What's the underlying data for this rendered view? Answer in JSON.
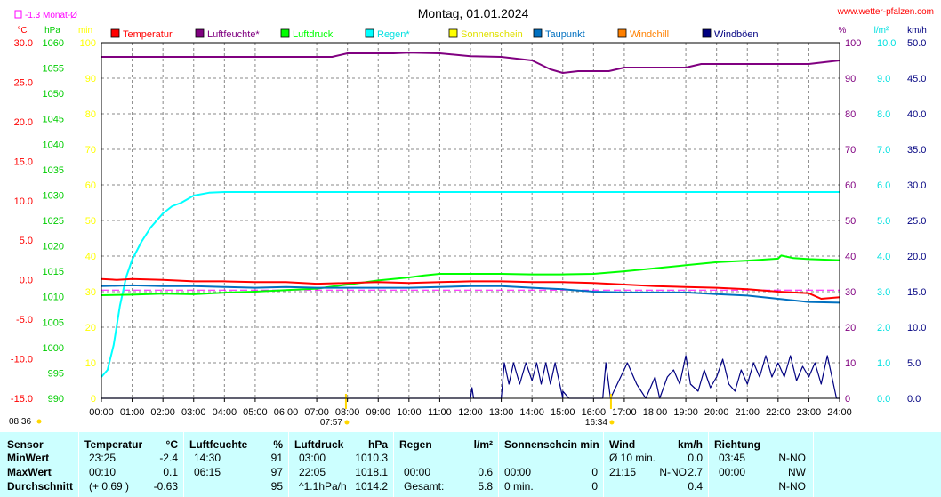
{
  "site": "www.wetter-pfalzen.com",
  "chart_data": {
    "type": "line",
    "title": "Montag, 01.01.2024",
    "x_range": [
      "00:00",
      "24:00"
    ],
    "x_ticks": [
      "00:00",
      "01:00",
      "02:00",
      "03:00",
      "04:00",
      "05:00",
      "06:00",
      "07:00",
      "08:00",
      "09:00",
      "10:00",
      "11:00",
      "12:00",
      "13:00",
      "14:00",
      "15:00",
      "16:00",
      "17:00",
      "18:00",
      "19:00",
      "20:00",
      "21:00",
      "22:00",
      "23:00",
      "24:00"
    ],
    "grid": true,
    "legend_position": "top",
    "month_avg_label": "-1.3 Monat-Ø",
    "month_avg_value": -1.3,
    "sunrise": "07:57",
    "sunset": "16:34",
    "sunrise_hour": 7.95,
    "sunset_hour": 16.567,
    "left_corner_time": "08:36",
    "axes": [
      {
        "id": "temp",
        "unit": "°C",
        "color": "#ff0000",
        "range": [
          -15,
          30
        ],
        "ticks": [
          "30.0",
          "25.0",
          "20.0",
          "15.0",
          "10.0",
          "5.0",
          "0.0",
          "-5.0",
          "-10.0",
          "-15.0"
        ]
      },
      {
        "id": "press",
        "unit": "hPa",
        "color": "#00cc00",
        "range": [
          990,
          1060
        ],
        "ticks": [
          "1060",
          "1055",
          "1050",
          "1045",
          "1040",
          "1035",
          "1030",
          "1025",
          "1020",
          "1015",
          "1010",
          "1005",
          "1000",
          "995",
          "990"
        ]
      },
      {
        "id": "sun",
        "unit": "min",
        "color": "#ffff00",
        "range": [
          0,
          100
        ],
        "ticks": [
          "100",
          "90",
          "80",
          "70",
          "60",
          "50",
          "40",
          "30",
          "20",
          "10",
          "0"
        ]
      },
      {
        "id": "hum",
        "unit": "%",
        "color": "#800080",
        "range": [
          0,
          100
        ],
        "ticks": [
          "100",
          "90",
          "80",
          "70",
          "60",
          "50",
          "40",
          "30",
          "20",
          "10",
          "0"
        ]
      },
      {
        "id": "rain",
        "unit": "l/m²",
        "color": "#00e0e0",
        "range": [
          0,
          10
        ],
        "ticks": [
          "10.0",
          "9.0",
          "8.0",
          "7.0",
          "6.0",
          "5.0",
          "4.0",
          "3.0",
          "2.0",
          "1.0",
          "0.0"
        ]
      },
      {
        "id": "wind",
        "unit": "km/h",
        "color": "#000080",
        "range": [
          0,
          50
        ],
        "ticks": [
          "50.0",
          "45.0",
          "40.0",
          "35.0",
          "30.0",
          "25.0",
          "20.0",
          "15.0",
          "10.0",
          "5.0",
          "0.0"
        ]
      }
    ],
    "legend": [
      {
        "name": "Temperatur",
        "color": "#ff0000"
      },
      {
        "name": "Luftfeuchte*",
        "color": "#800080"
      },
      {
        "name": "Luftdruck",
        "color": "#00ff00"
      },
      {
        "name": "Regen*",
        "color": "#00ffff"
      },
      {
        "name": "Sonnenschein",
        "color": "#ffff00"
      },
      {
        "name": "Taupunkt",
        "color": "#0070c0"
      },
      {
        "name": "Windchill",
        "color": "#ff8000"
      },
      {
        "name": "Windböen",
        "color": "#000080"
      }
    ],
    "series": [
      {
        "name": "Luftfeuchte*",
        "axis": "hum",
        "color": "#800080",
        "points": [
          [
            0,
            96
          ],
          [
            7.5,
            96
          ],
          [
            8,
            97
          ],
          [
            9.5,
            97
          ],
          [
            10,
            97.2
          ],
          [
            11,
            97
          ],
          [
            12,
            96.2
          ],
          [
            13,
            96
          ],
          [
            14,
            95
          ],
          [
            14.6,
            92.5
          ],
          [
            15,
            91.5
          ],
          [
            15.5,
            92
          ],
          [
            16.5,
            92
          ],
          [
            17,
            93
          ],
          [
            18,
            93
          ],
          [
            19,
            93
          ],
          [
            19.5,
            94
          ],
          [
            20,
            94
          ],
          [
            21,
            94
          ],
          [
            22,
            94
          ],
          [
            23,
            94
          ],
          [
            23.5,
            94.5
          ],
          [
            24,
            95
          ]
        ]
      },
      {
        "name": "Regen*",
        "axis": "rain",
        "color": "#00ffff",
        "points": [
          [
            0,
            0.6
          ],
          [
            0.2,
            0.8
          ],
          [
            0.4,
            1.5
          ],
          [
            0.6,
            2.6
          ],
          [
            0.8,
            3.4
          ],
          [
            1,
            3.9
          ],
          [
            1.3,
            4.4
          ],
          [
            1.6,
            4.8
          ],
          [
            2,
            5.2
          ],
          [
            2.3,
            5.4
          ],
          [
            2.6,
            5.5
          ],
          [
            3,
            5.7
          ],
          [
            3.5,
            5.78
          ],
          [
            4,
            5.8
          ],
          [
            24,
            5.8
          ]
        ]
      },
      {
        "name": "Luftdruck",
        "axis": "press",
        "color": "#00ff00",
        "points": [
          [
            0,
            1010.3
          ],
          [
            1,
            1010.4
          ],
          [
            2,
            1010.6
          ],
          [
            3,
            1010.5
          ],
          [
            4,
            1010.8
          ],
          [
            5,
            1011
          ],
          [
            6,
            1011.3
          ],
          [
            7,
            1011.6
          ],
          [
            7.5,
            1012
          ],
          [
            8,
            1012.4
          ],
          [
            8.5,
            1012.8
          ],
          [
            9,
            1013.2
          ],
          [
            10,
            1013.8
          ],
          [
            10.5,
            1014.2
          ],
          [
            11,
            1014.5
          ],
          [
            12,
            1014.5
          ],
          [
            13,
            1014.5
          ],
          [
            14,
            1014.4
          ],
          [
            15,
            1014.4
          ],
          [
            16,
            1014.5
          ],
          [
            17,
            1015
          ],
          [
            18,
            1015.6
          ],
          [
            19,
            1016.2
          ],
          [
            20,
            1016.8
          ],
          [
            21,
            1017.1
          ],
          [
            22,
            1017.5
          ],
          [
            22.1,
            1018.1
          ],
          [
            22.5,
            1017.6
          ],
          [
            23,
            1017.4
          ],
          [
            24,
            1017.2
          ]
        ]
      },
      {
        "name": "Temperatur",
        "axis": "temp",
        "color": "#ff0000",
        "points": [
          [
            0,
            0.1
          ],
          [
            0.5,
            0.0
          ],
          [
            1,
            0.1
          ],
          [
            2,
            0
          ],
          [
            3,
            -0.2
          ],
          [
            4,
            -0.2
          ],
          [
            5,
            -0.3
          ],
          [
            6,
            -0.3
          ],
          [
            7,
            -0.5
          ],
          [
            8,
            -0.4
          ],
          [
            9,
            -0.3
          ],
          [
            10,
            -0.4
          ],
          [
            11,
            -0.3
          ],
          [
            12,
            -0.2
          ],
          [
            13,
            -0.2
          ],
          [
            14,
            -0.3
          ],
          [
            15,
            -0.3
          ],
          [
            16,
            -0.4
          ],
          [
            17,
            -0.6
          ],
          [
            18,
            -0.8
          ],
          [
            19,
            -0.9
          ],
          [
            20,
            -1.0
          ],
          [
            21,
            -1.2
          ],
          [
            22,
            -1.5
          ],
          [
            23,
            -1.7
          ],
          [
            23.4,
            -2.4
          ],
          [
            24,
            -2.2
          ]
        ]
      },
      {
        "name": "Taupunkt",
        "axis": "temp",
        "color": "#0070c0",
        "points": [
          [
            0,
            -0.8
          ],
          [
            1,
            -0.7
          ],
          [
            2,
            -0.8
          ],
          [
            3,
            -0.8
          ],
          [
            4,
            -0.9
          ],
          [
            5,
            -1.0
          ],
          [
            6,
            -0.9
          ],
          [
            7,
            -1.0
          ],
          [
            8,
            -1.0
          ],
          [
            9,
            -1.0
          ],
          [
            10,
            -1.0
          ],
          [
            11,
            -0.9
          ],
          [
            12,
            -0.8
          ],
          [
            13,
            -0.8
          ],
          [
            14,
            -1.0
          ],
          [
            15,
            -1.2
          ],
          [
            16,
            -1.5
          ],
          [
            17,
            -1.6
          ],
          [
            18,
            -1.6
          ],
          [
            19,
            -1.6
          ],
          [
            20,
            -1.8
          ],
          [
            21,
            -2.0
          ],
          [
            22,
            -2.4
          ],
          [
            23,
            -2.8
          ],
          [
            24,
            -2.9
          ]
        ]
      },
      {
        "name": "Windböen",
        "axis": "wind",
        "color": "#000080",
        "points": [
          [
            0,
            0
          ],
          [
            12,
            0
          ],
          [
            12.05,
            1.5
          ],
          [
            12.1,
            0
          ],
          [
            13,
            0
          ],
          [
            13.1,
            5
          ],
          [
            13.25,
            2
          ],
          [
            13.4,
            5
          ],
          [
            13.6,
            2
          ],
          [
            13.8,
            5
          ],
          [
            14,
            2.5
          ],
          [
            14.15,
            5
          ],
          [
            14.3,
            2
          ],
          [
            14.45,
            5
          ],
          [
            14.6,
            2
          ],
          [
            14.75,
            5
          ],
          [
            15,
            0
          ],
          [
            15,
            1
          ],
          [
            15.2,
            0
          ],
          [
            16.3,
            0
          ],
          [
            16.4,
            5
          ],
          [
            16.55,
            0
          ],
          [
            17.1,
            5
          ],
          [
            17.4,
            2
          ],
          [
            17.7,
            0
          ],
          [
            18,
            3
          ],
          [
            18.15,
            0
          ],
          [
            18.4,
            3
          ],
          [
            18.6,
            4
          ],
          [
            18.8,
            2
          ],
          [
            19,
            6
          ],
          [
            19.15,
            2
          ],
          [
            19.4,
            1
          ],
          [
            19.6,
            4
          ],
          [
            19.8,
            1.5
          ],
          [
            20,
            3
          ],
          [
            20.2,
            5.5
          ],
          [
            20.4,
            2
          ],
          [
            20.6,
            1
          ],
          [
            20.8,
            4
          ],
          [
            21,
            2
          ],
          [
            21.2,
            5
          ],
          [
            21.4,
            3
          ],
          [
            21.6,
            6
          ],
          [
            21.8,
            3
          ],
          [
            22,
            5
          ],
          [
            22.2,
            3
          ],
          [
            22.4,
            6
          ],
          [
            22.6,
            2.5
          ],
          [
            22.8,
            4.5
          ],
          [
            23,
            3
          ],
          [
            23.2,
            5
          ],
          [
            23.4,
            2
          ],
          [
            23.6,
            6
          ],
          [
            23.75,
            3
          ],
          [
            23.9,
            0
          ],
          [
            24,
            0
          ]
        ]
      }
    ]
  },
  "table": {
    "headers": {
      "sensor": "Sensor",
      "temp": "Temperatur",
      "temp_unit": "°C",
      "hum": "Luftfeuchte",
      "hum_unit": "%",
      "press": "Luftdruck",
      "press_unit": "hPa",
      "rain": "Regen",
      "rain_unit": "l/m²",
      "sun": "Sonnenschein min",
      "wind": "Wind",
      "wind_unit": "km/h",
      "dir": "Richtung"
    },
    "rows": [
      {
        "label": "MinWert",
        "temp_time": "23:25",
        "temp_val": "-2.4",
        "hum_time": "14:30",
        "hum_val": "91",
        "press_time": "03:00",
        "press_val": "1010.3",
        "rain_time": "",
        "rain_val": "",
        "sun_time": "",
        "sun_val": "",
        "wind_time": "Ø 10 min.",
        "wind_dir": "",
        "wind_val": "0.0",
        "dir_time": "03:45",
        "dir_val": "N-NO"
      },
      {
        "label": "MaxWert",
        "temp_time": "00:10",
        "temp_val": "0.1",
        "hum_time": "06:15",
        "hum_val": "97",
        "press_time": "22:05",
        "press_val": "1018.1",
        "rain_time": "00:00",
        "rain_val": "0.6",
        "sun_time": "00:00",
        "sun_val": "0",
        "wind_time": "21:15",
        "wind_dir": "N-NO",
        "wind_val": "2.7",
        "dir_time": "00:00",
        "dir_val": "NW"
      },
      {
        "label": "Durchschnitt",
        "temp_time": "(+ 0.69 )",
        "temp_val": "-0.63",
        "hum_time": "",
        "hum_val": "95",
        "press_time": "^1.1hPa/h",
        "press_val": "1014.2",
        "rain_time": "Gesamt:",
        "rain_val": "5.8",
        "sun_time": "0 min.",
        "sun_val": "0",
        "wind_time": "",
        "wind_dir": "",
        "wind_val": "0.4",
        "dir_time": "",
        "dir_val": "N-NO"
      }
    ]
  }
}
